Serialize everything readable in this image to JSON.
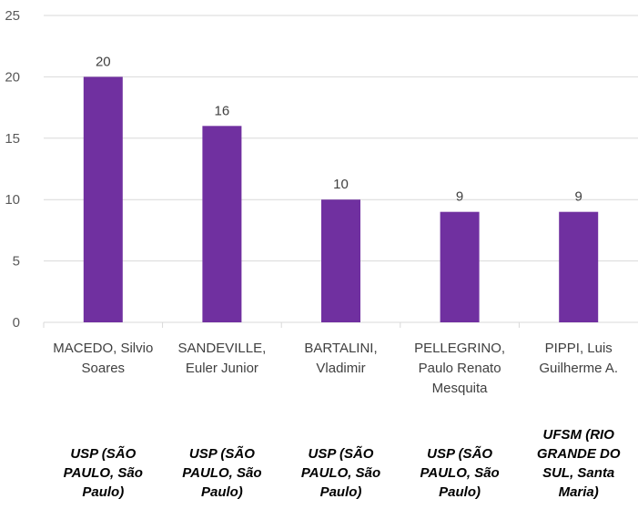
{
  "chart_data": {
    "type": "bar",
    "title": "",
    "xlabel": "",
    "ylabel": "",
    "ylim": [
      0,
      25
    ],
    "yticks": [
      0,
      5,
      10,
      15,
      20,
      25
    ],
    "grid": true,
    "bar_color": "#7030a0",
    "grid_color": "#d9d9d9",
    "categories": [
      [
        "MACEDO, Silvio",
        "Soares"
      ],
      [
        "SANDEVILLE,",
        "Euler Junior"
      ],
      [
        "BARTALINI,",
        "Vladimir"
      ],
      [
        "PELLEGRINO,",
        "Paulo Renato",
        "Mesquita"
      ],
      [
        "PIPPI, Luis",
        "Guilherme A."
      ]
    ],
    "institutions": [
      [
        "USP (SÃO",
        "PAULO, São",
        "Paulo)"
      ],
      [
        "USP (SÃO",
        "PAULO, São",
        "Paulo)"
      ],
      [
        "USP (SÃO",
        "PAULO, São",
        "Paulo)"
      ],
      [
        "USP (SÃO",
        "PAULO, São",
        "Paulo)"
      ],
      [
        "UFSM (RIO",
        "GRANDE DO",
        "SUL, Santa",
        "Maria)"
      ]
    ],
    "values": [
      20,
      16,
      10,
      9,
      9
    ],
    "data_labels": [
      "20",
      "16",
      "10",
      "9",
      "9"
    ]
  }
}
